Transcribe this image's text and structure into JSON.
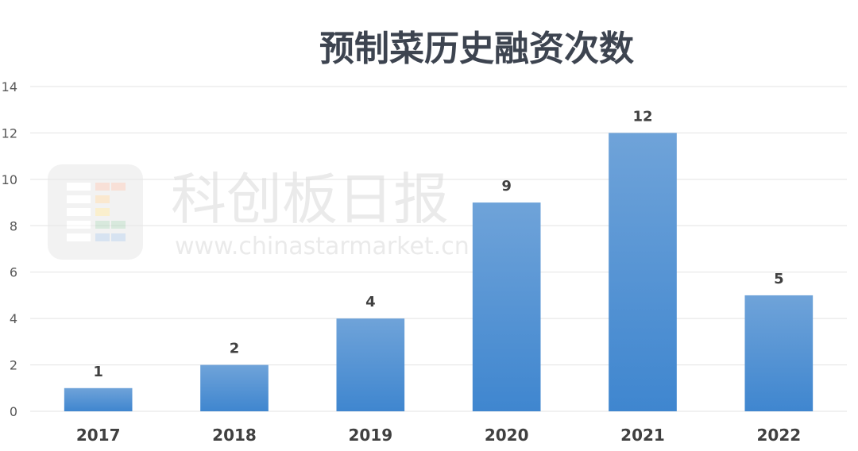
{
  "chart_data": {
    "type": "bar",
    "title": "预制菜历史融资次数",
    "xlabel": "",
    "ylabel": "",
    "categories": [
      "2017",
      "2018",
      "2019",
      "2020",
      "2021",
      "2022"
    ],
    "values": [
      1,
      2,
      4,
      9,
      12,
      5
    ],
    "ylim": [
      0,
      14
    ],
    "yticks": [
      0,
      2,
      4,
      6,
      8,
      10,
      12,
      14
    ],
    "grid": true,
    "legend": "none",
    "bar_color_top": "#6fa3d9",
    "bar_color_bottom": "#3f86cf",
    "data_labels": true
  },
  "watermark": {
    "name": "科创板日报",
    "url": "www.chinastarmarket.cn"
  }
}
